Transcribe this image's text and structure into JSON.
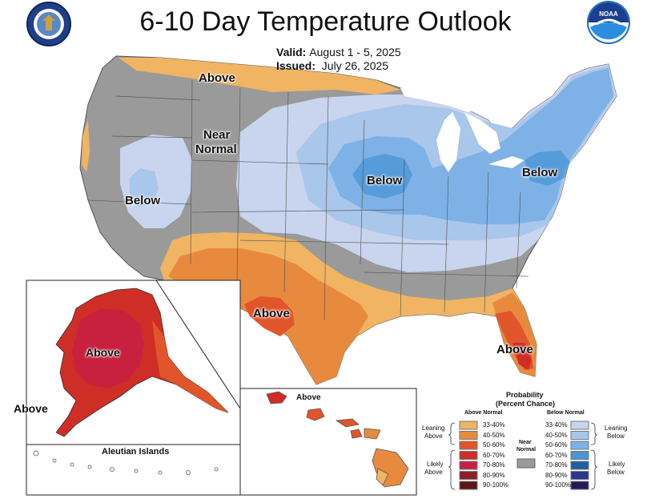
{
  "header": {
    "title": "6-10 Day Temperature Outlook",
    "valid_label": "Valid:",
    "valid_value": "August 1 - 5, 2025",
    "issued_label": "Issued:",
    "issued_value": "July 26, 2025"
  },
  "logos": {
    "left": "seal-icon",
    "right": "noaa-logo-icon",
    "noaa_text": "NOAA"
  },
  "map": {
    "region_labels": {
      "above_north": "Above",
      "near_normal_line1": "Near",
      "near_normal_line2": "Normal",
      "below_west": "Below",
      "below_midwest": "Below",
      "below_northeast": "Below",
      "above_texas": "Above",
      "above_florida": "Above",
      "above_alaska": "Above",
      "above_alaska_outside": "Above",
      "above_hawaii": "Above"
    },
    "inset_aleutian": "Aleutian Islands"
  },
  "legend": {
    "title_line1": "Probability",
    "title_line2": "(Percent Chance)",
    "above_header": "Above Normal",
    "below_header": "Below Normal",
    "near_line1": "Near",
    "near_line2": "Normal",
    "leaning_above_1": "Leaning",
    "leaning_above_2": "Above",
    "likely_above_1": "Likely",
    "likely_above_2": "Above",
    "leaning_below_1": "Leaning",
    "leaning_below_2": "Below",
    "likely_below_1": "Likely",
    "likely_below_2": "Below",
    "above_bins": [
      {
        "label": "33-40%",
        "color": "#f0b463"
      },
      {
        "label": "40-50%",
        "color": "#e88a3e"
      },
      {
        "label": "50-60%",
        "color": "#e1552b"
      },
      {
        "label": "60-70%",
        "color": "#cf2e27"
      },
      {
        "label": "70-80%",
        "color": "#c7213f"
      },
      {
        "label": "80-90%",
        "color": "#8c1e2c"
      },
      {
        "label": "90-100%",
        "color": "#5e1616"
      }
    ],
    "below_bins": [
      {
        "label": "33-40%",
        "color": "#c9d4ee"
      },
      {
        "label": "40-50%",
        "color": "#a9c6eb"
      },
      {
        "label": "50-60%",
        "color": "#7eb2e6"
      },
      {
        "label": "60-70%",
        "color": "#4a94d7"
      },
      {
        "label": "70-80%",
        "color": "#1f5ea8"
      },
      {
        "label": "80-90%",
        "color": "#2b3590"
      },
      {
        "label": "90-100%",
        "color": "#201a5a"
      }
    ],
    "near_color": "#9a9a9a"
  }
}
